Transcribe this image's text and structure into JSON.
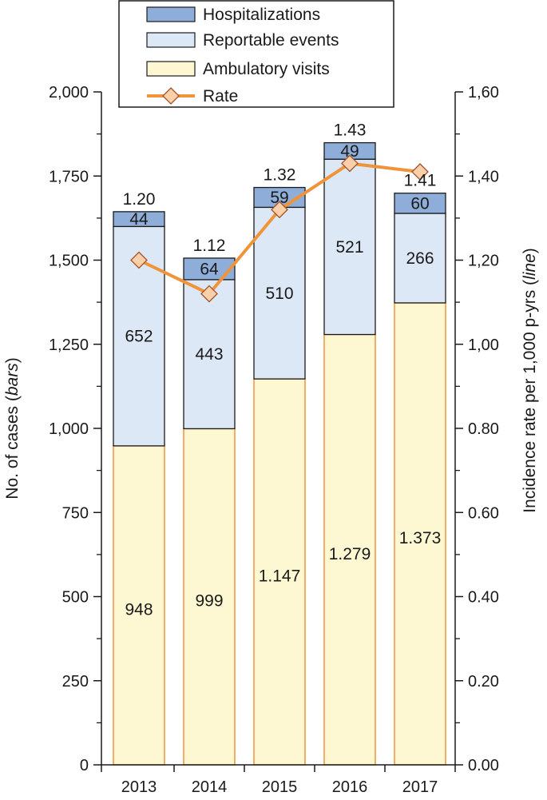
{
  "chart_data": {
    "type": "bar",
    "stacked": true,
    "secondary_axis_line": true,
    "categories": [
      "2013",
      "2014",
      "2015",
      "2016",
      "2017"
    ],
    "series": [
      {
        "name": "Ambulatory visits",
        "values": [
          948,
          999,
          1147,
          1279,
          1373
        ],
        "labels": [
          "948",
          "999",
          "1.147",
          "1.279",
          "1.373"
        ],
        "color": "#fdf7d2",
        "stroke": "#f0943a"
      },
      {
        "name": "Reportable events",
        "values": [
          652,
          443,
          510,
          521,
          266
        ],
        "labels": [
          "652",
          "443",
          "510",
          "521",
          "266"
        ],
        "color": "#dde8f6",
        "stroke": "#1a1a1a"
      },
      {
        "name": "Hospitalizations",
        "values": [
          44,
          64,
          59,
          49,
          60
        ],
        "labels": [
          "44",
          "64",
          "59",
          "49",
          "60"
        ],
        "color": "#8eadd9",
        "stroke": "#1a1a1a"
      }
    ],
    "line": {
      "name": "Rate",
      "values": [
        1.2,
        1.12,
        1.32,
        1.43,
        1.41
      ],
      "labels": [
        "1.20",
        "1.12",
        "1.32",
        "1.43",
        "1.41"
      ],
      "color": "#f0943a",
      "marker_fill": "#fbd0a8"
    },
    "y_left": {
      "label": "No. of cases",
      "label_italic": "bars",
      "lim": [
        0,
        2000
      ],
      "ticks": [
        0,
        250,
        500,
        750,
        1000,
        1250,
        1500,
        1750,
        2000
      ],
      "tick_labels": [
        "0",
        "250",
        "500",
        "750",
        "1,000",
        "1,250",
        "1,500",
        "1,750",
        "2,000"
      ]
    },
    "y_right": {
      "label": "Incidence rate per 1,000 p-yrs",
      "label_italic": "line",
      "lim": [
        0,
        1.6
      ],
      "ticks": [
        0,
        0.2,
        0.4,
        0.6,
        0.8,
        1.0,
        1.2,
        1.4,
        1.6
      ],
      "tick_labels": [
        "0.00",
        "0.20",
        "0.40",
        "0.60",
        "0.80",
        "1,00",
        "1,20",
        "1,40",
        "1,60"
      ]
    },
    "legend": {
      "position": "top",
      "entries": [
        "Hospitalizations",
        "Reportable events",
        "Ambulatory visits",
        "Rate"
      ]
    },
    "grid": false
  }
}
